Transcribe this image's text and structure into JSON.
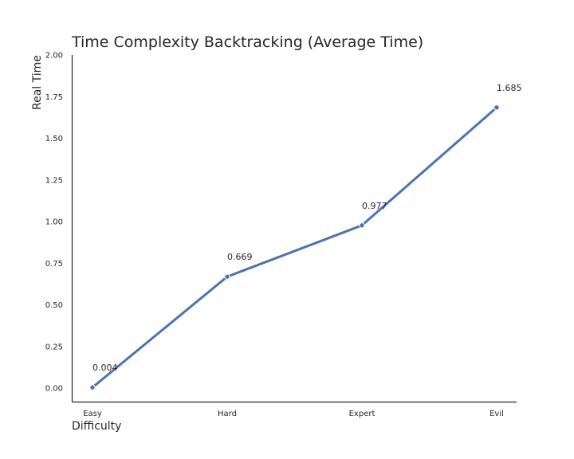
{
  "chart_data": {
    "type": "line",
    "title": "Time Complexity Backtracking (Average Time)",
    "xlabel": "Difficulty",
    "ylabel": "Real Time",
    "categories": [
      "Easy",
      "Hard",
      "Expert",
      "Evil"
    ],
    "series": [
      {
        "values": [
          0.004,
          0.669,
          0.977,
          1.685
        ]
      }
    ],
    "data_labels": [
      "0.004",
      "0.669",
      "0.977",
      "1.685"
    ],
    "ylim": [
      -0.08,
      2.0
    ],
    "yticks": [
      0.0,
      0.25,
      0.5,
      0.75,
      1.0,
      1.25,
      1.5,
      1.75,
      2.0
    ],
    "ytick_labels": [
      "0.00",
      "0.25",
      "0.50",
      "0.75",
      "1.00",
      "1.25",
      "1.50",
      "1.75",
      "2.00"
    ],
    "grid": false,
    "line_color": "#4c72b0"
  }
}
